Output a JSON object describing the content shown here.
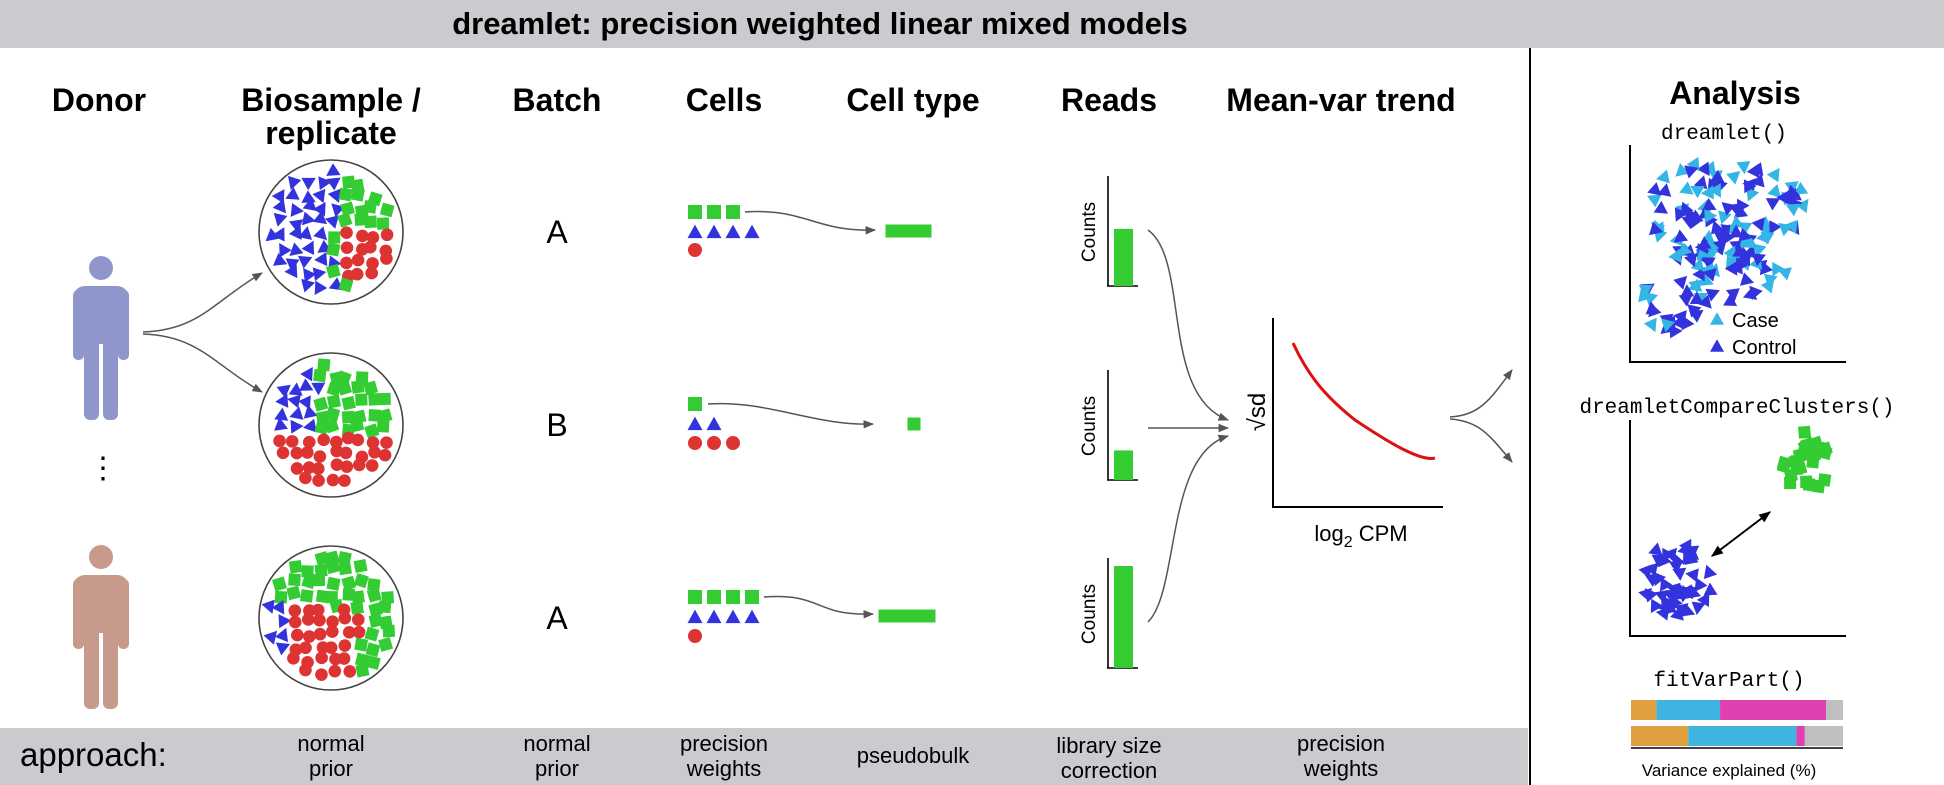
{
  "title": "dreamlet: precision weighted linear mixed models",
  "columns": {
    "donor": "Donor",
    "biosample_line1": "Biosample /",
    "biosample_line2": "replicate",
    "batch": "Batch",
    "cells": "Cells",
    "cell_type": "Cell type",
    "reads": "Reads",
    "mean_var": "Mean-var trend"
  },
  "batches": [
    "A",
    "B",
    "A"
  ],
  "counts_label": "Counts",
  "counts_fill": [
    0.56,
    0.29,
    1.0
  ],
  "trend": {
    "ylabel": "√sd",
    "xlabel_prefix": "log",
    "xlabel_sub": "2",
    "xlabel_suffix": " CPM"
  },
  "analysis": {
    "title": "Analysis",
    "dreamlet_fn": "dreamlet()",
    "legend_case": "Case",
    "legend_control": "Control",
    "compare_fn": "dreamletCompareClusters()",
    "varpart_fn": "fitVarPart()",
    "varpart_xlabel": "Variance explained (%)",
    "varpart_rows": [
      [
        12,
        30,
        50,
        8
      ],
      [
        27,
        51,
        4,
        18
      ]
    ]
  },
  "approach": {
    "label": "approach:",
    "items": [
      [
        "normal",
        "prior"
      ],
      [
        "normal",
        "prior"
      ],
      [
        "precision",
        "weights"
      ],
      [
        "pseudobulk"
      ],
      [
        "library size",
        "correction"
      ],
      [
        "precision",
        "weights"
      ]
    ]
  },
  "colors": {
    "green": "#33cc33",
    "blue": "#3333dd",
    "red": "#dd3333",
    "cyan": "#33b5e5",
    "donor1": "#8e96cc",
    "donor2": "#c89a8c",
    "curve": "#dd1111",
    "bar_gray": "#cbcbcf",
    "varpart": [
      "#e0a040",
      "#40b4e0",
      "#e040b0",
      "#bfbfbf"
    ]
  }
}
